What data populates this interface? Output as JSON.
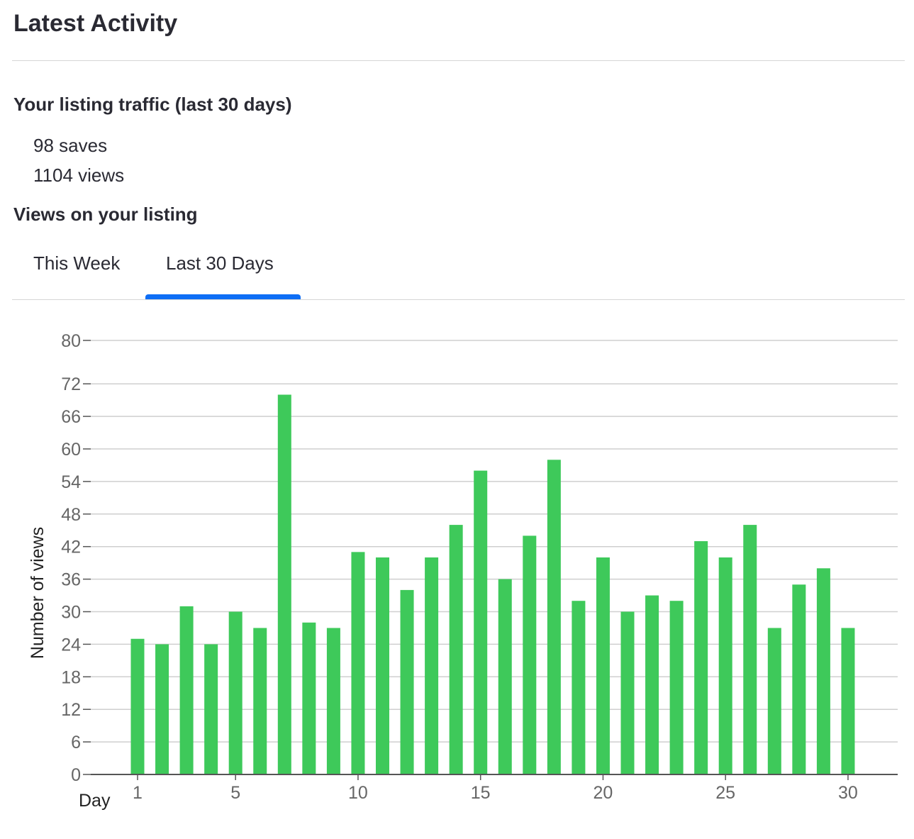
{
  "header": {
    "title": "Latest Activity"
  },
  "traffic": {
    "heading": "Your listing traffic (last 30 days)",
    "saves": "98 saves",
    "views": "1104 views"
  },
  "views_section": {
    "heading": "Views on your listing",
    "tabs": [
      {
        "label": "This Week",
        "active": false
      },
      {
        "label": "Last 30 Days",
        "active": true
      }
    ]
  },
  "colors": {
    "bar": "#3ec95a",
    "accent": "#0e6ef5",
    "grid": "#cfcfcf",
    "axis": "#555555",
    "tick_text": "#666666"
  },
  "chart_data": {
    "type": "bar",
    "xlabel": "Day",
    "ylabel": "Number of views",
    "x": [
      1,
      2,
      3,
      4,
      5,
      6,
      7,
      8,
      9,
      10,
      11,
      12,
      13,
      14,
      15,
      16,
      17,
      18,
      19,
      20,
      21,
      22,
      23,
      24,
      25,
      26,
      27,
      28,
      29,
      30
    ],
    "values": [
      25,
      24,
      31,
      24,
      30,
      27,
      70,
      28,
      27,
      41,
      40,
      34,
      40,
      46,
      56,
      36,
      44,
      58,
      32,
      40,
      30,
      33,
      32,
      43,
      40,
      46,
      27,
      35,
      38,
      27
    ],
    "xticks": [
      1,
      5,
      10,
      15,
      20,
      25,
      30
    ],
    "yticks": [
      0,
      6,
      12,
      18,
      24,
      30,
      36,
      42,
      48,
      54,
      60,
      66,
      72,
      80
    ],
    "ylim": [
      0,
      80
    ],
    "grid": true,
    "legend": "none"
  }
}
